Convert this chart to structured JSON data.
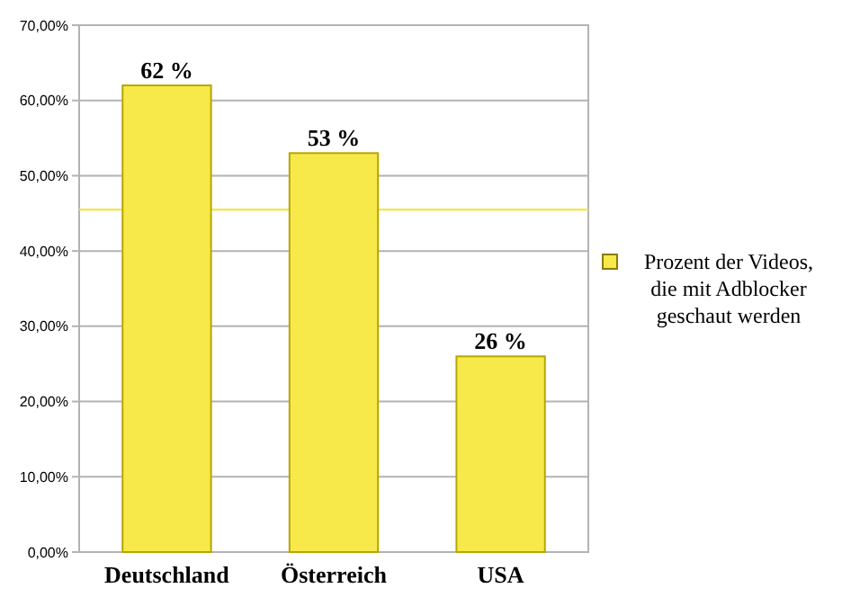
{
  "chart_data": {
    "type": "bar",
    "categories": [
      "Deutschland",
      "Österreich",
      "USA"
    ],
    "series": [
      {
        "name": "Prozent der Videos, die mit Adblocker geschaut werden",
        "color": "#f7e94a",
        "values": [
          62,
          53,
          26
        ],
        "value_labels": [
          "62 %",
          "53 %",
          "26 %"
        ]
      }
    ],
    "ylim": [
      0,
      70
    ],
    "yticks": [
      {
        "value": 0,
        "label": "0,00%"
      },
      {
        "value": 10,
        "label": "10,00%"
      },
      {
        "value": 20,
        "label": "20,00%"
      },
      {
        "value": 30,
        "label": "30,00%"
      },
      {
        "value": 40,
        "label": "40,00%"
      },
      {
        "value": 50,
        "label": "50,00%"
      },
      {
        "value": 60,
        "label": "60,00%"
      },
      {
        "value": 70,
        "label": "70,00%"
      }
    ],
    "grid": "y",
    "legend": "right",
    "ref_lines": [
      {
        "axis": "y",
        "value": 45.5,
        "label": null,
        "color": "#f5e642"
      }
    ]
  }
}
